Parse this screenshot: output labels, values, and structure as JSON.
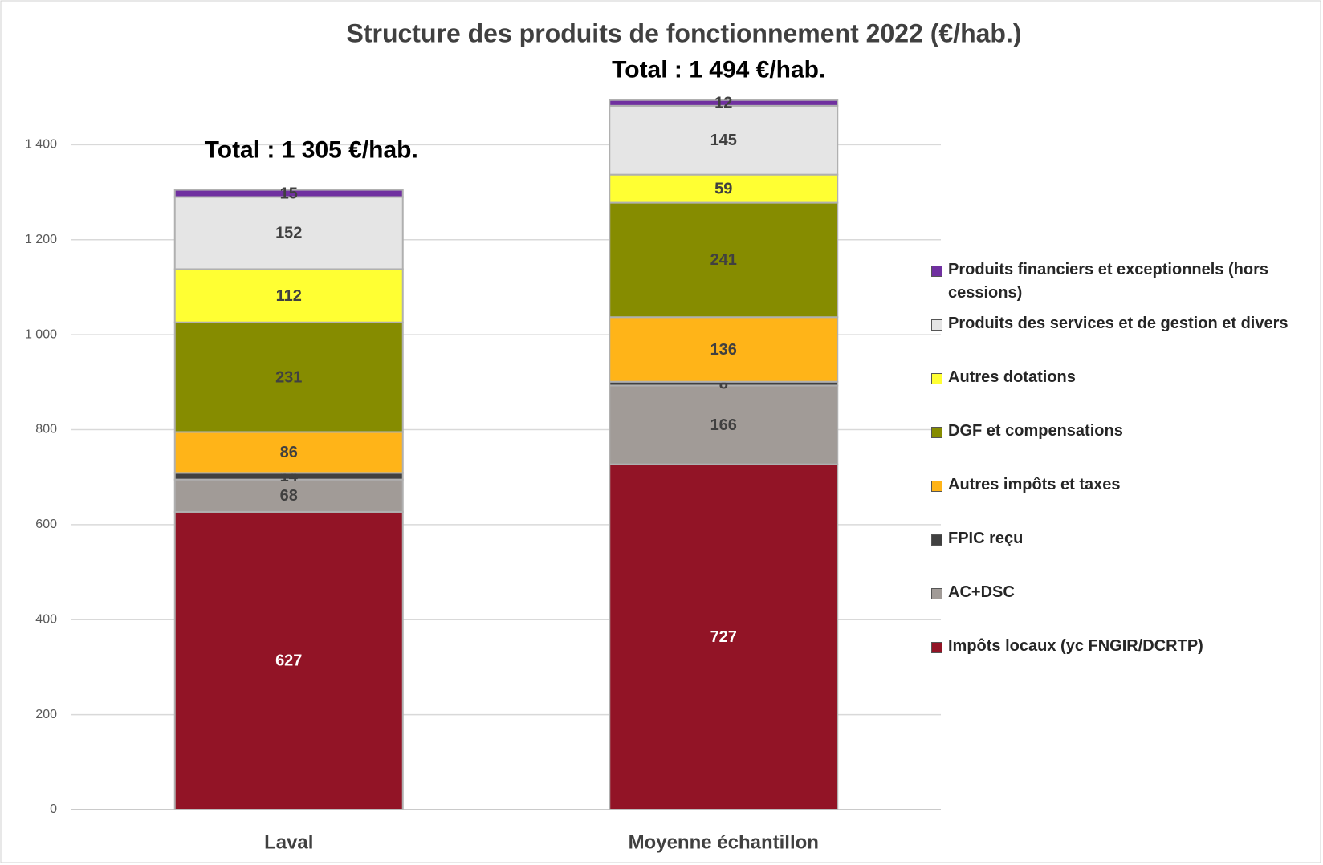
{
  "chart_data": {
    "type": "stacked_bar",
    "title": "Structure des produits de fonctionnement 2022 (€/hab.)",
    "categories": [
      "Laval",
      "Moyenne échantillon"
    ],
    "annotations": [
      "Total : 1 305 €/hab.",
      "Total : 1 494 €/hab."
    ],
    "series": [
      {
        "name": "Impôts locaux (yc FNGIR/DCRTP)",
        "color": "#921426",
        "values": [
          627,
          727
        ]
      },
      {
        "name": "AC+DSC",
        "color": "#a19b97",
        "values": [
          68,
          166
        ]
      },
      {
        "name": "FPIC reçu",
        "color": "#404040",
        "values": [
          14,
          8
        ]
      },
      {
        "name": "Autres impôts et taxes",
        "color": "#ffb418",
        "values": [
          86,
          136
        ]
      },
      {
        "name": "DGF et compensations",
        "color": "#868c00",
        "values": [
          231,
          241
        ]
      },
      {
        "name": "Autres dotations",
        "color": "#ffff33",
        "values": [
          112,
          59
        ]
      },
      {
        "name": "Produits des services et de gestion et divers",
        "color": "#e5e5e5",
        "values": [
          152,
          145
        ]
      },
      {
        "name": "Produits financiers et exceptionnels (hors cessions)",
        "color": "#7030a0",
        "values": [
          15,
          12
        ]
      }
    ],
    "ylim": [
      0,
      1600
    ],
    "yticks": [
      0,
      200,
      400,
      600,
      800,
      {
        "value": 1000,
        "label": "1 000"
      },
      {
        "value": 1200,
        "label": "1 200"
      },
      {
        "value": 1400,
        "label": "1 400"
      }
    ],
    "grid": true,
    "legend": "right"
  }
}
